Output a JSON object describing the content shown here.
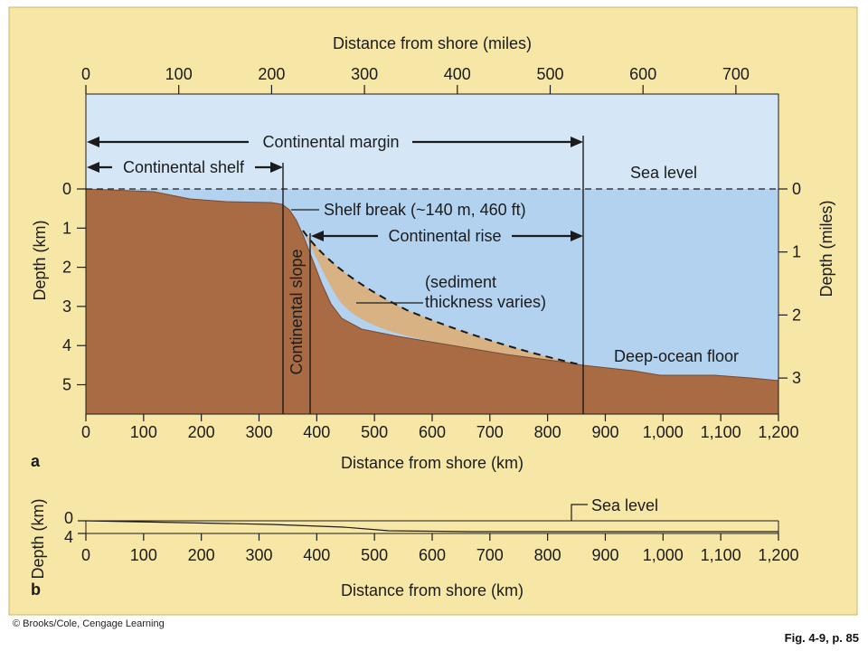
{
  "colors": {
    "panel_bg": "#F7E7A6",
    "sky": "#D5E7F6",
    "water": "#B2D2EF",
    "crust": "#A86B44",
    "sediment": "#D9B284",
    "line": "#1b1b1b"
  },
  "top_axis": {
    "label": "Distance from shore (miles)",
    "ticks": [
      "0",
      "100",
      "200",
      "300",
      "400",
      "500",
      "600",
      "700"
    ]
  },
  "left_axis": {
    "label": "Depth (km)",
    "ticks": [
      "0",
      "1",
      "2",
      "3",
      "4",
      "5"
    ]
  },
  "right_axis": {
    "label": "Depth (miles)",
    "ticks": [
      "0",
      "1",
      "2",
      "3"
    ]
  },
  "bottom_axis": {
    "label": "Distance from shore (km)",
    "ticks": [
      "0",
      "100",
      "200",
      "300",
      "400",
      "500",
      "600",
      "700",
      "800",
      "900",
      "1,000",
      "1,100",
      "1,200"
    ]
  },
  "labels": {
    "continental_margin": "Continental margin",
    "continental_shelf": "Continental shelf",
    "sea_level": "Sea level",
    "shelf_break": "Shelf break (~140 m, 460 ft)",
    "continental_rise": "Continental rise",
    "sediment_line1": "(sediment",
    "sediment_line2": "thickness varies)",
    "continental_slope": "Continental slope",
    "deep_ocean_floor": "Deep-ocean floor"
  },
  "panel_a": {
    "letter": "a"
  },
  "panel_b": {
    "letter": "b",
    "sea_level": "Sea level",
    "depth_label": "Depth (km)",
    "depth_ticks": [
      "0",
      "4"
    ],
    "x_label": "Distance from shore (km)",
    "x_ticks": [
      "0",
      "100",
      "200",
      "300",
      "400",
      "500",
      "600",
      "700",
      "800",
      "900",
      "1,000",
      "1,100",
      "1,200"
    ]
  },
  "footer": {
    "copyright": "© Brooks/Cole, Cengage Learning",
    "figure_ref": "Fig. 4-9, p. 85"
  }
}
